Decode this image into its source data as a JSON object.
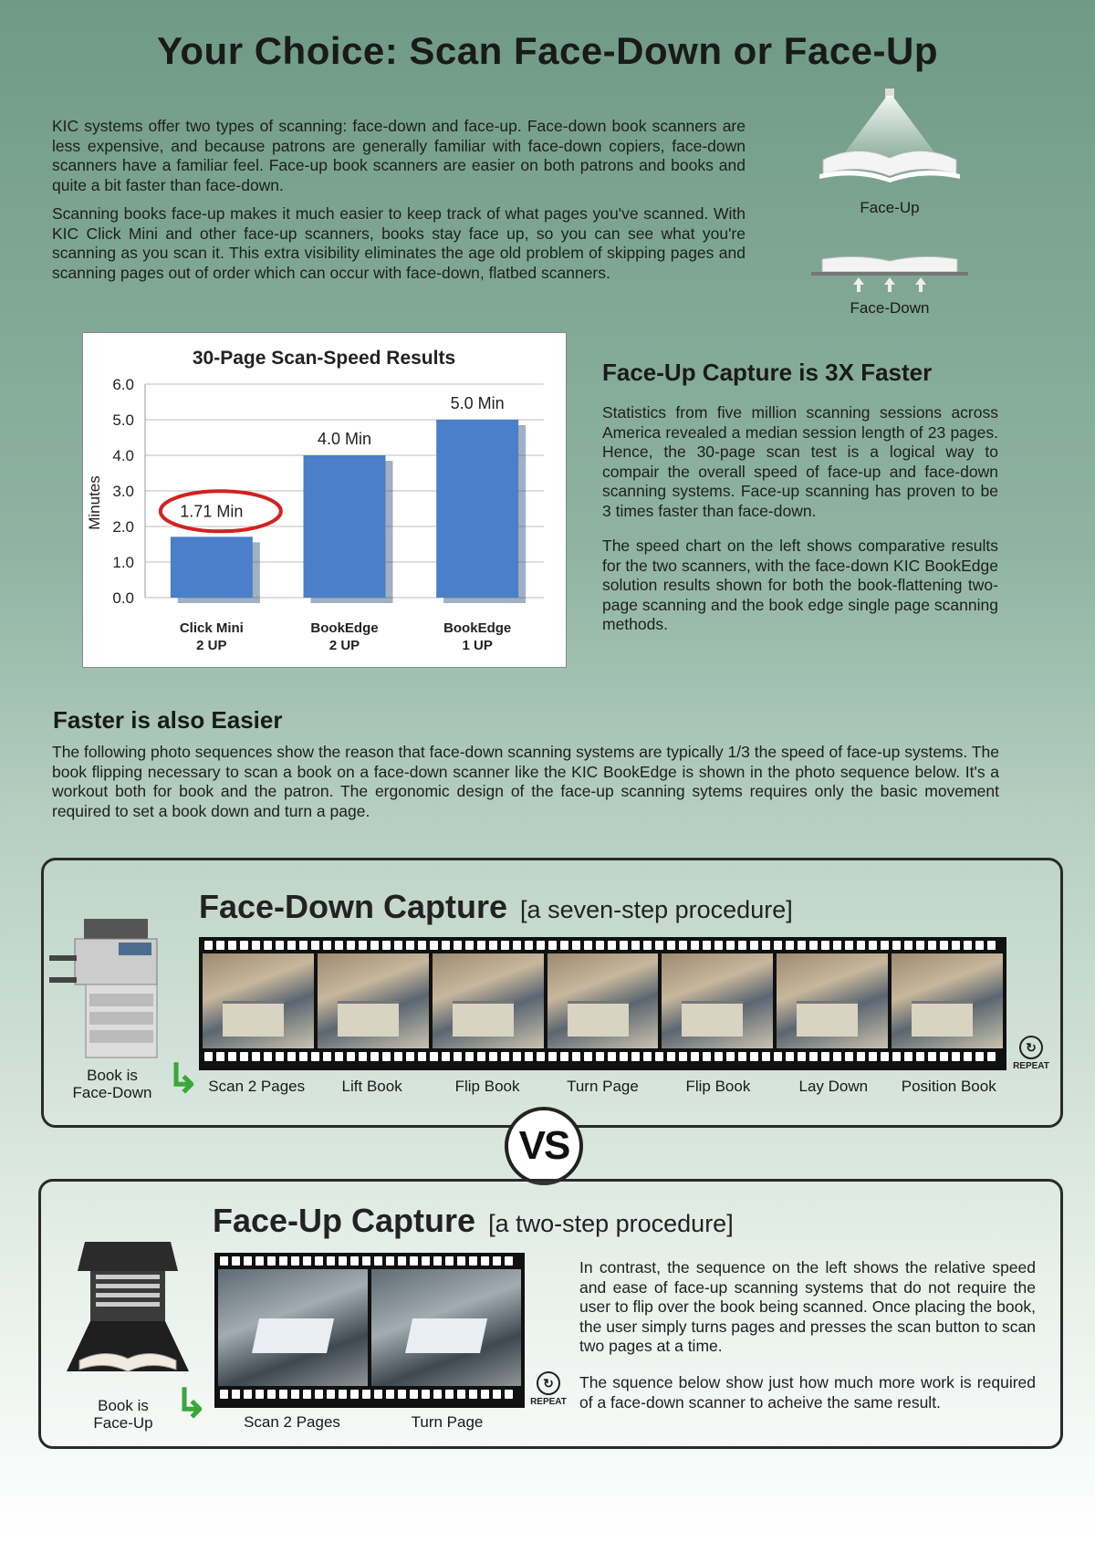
{
  "page": {
    "title": "Your Choice:  Scan Face-Down or Face-Up",
    "intro_p1": "KIC systems offer two types of scanning: face-down and face-up.  Face-down book scanners are less expensive, and because patrons are generally familiar with face-down copiers, face-down scanners have a familiar feel.  Face-up book scanners are easier on both patrons and books and quite a bit faster than face-down.",
    "intro_p2": "Scanning books face-up makes it much easier to keep track of what pages you've scanned. With KIC Click Mini and other face-up scanners, books stay face up, so you can see what you're scanning as you scan it.  This extra visibility eliminates the age old problem of skipping pages and scanning pages out of order which can occur with face-down, flatbed scanners.",
    "face_up_caption": "Face-Up",
    "face_down_caption": "Face-Down"
  },
  "speed_section": {
    "heading": "Face-Up Capture is 3X Faster",
    "p1": "Statistics from five million scanning sessions across America revealed a median session length of 23 pages.  Hence,  the 30-page scan test is a logical way to compair the overall speed of face-up and face-down scanning systems.  Face-up scanning has proven to be 3 times faster than face-down.",
    "p2": "The speed chart on the left shows comparative results for the two scanners, with the face-down KIC BookEdge solution results shown for both the book-flattening two-page scanning and the book edge single page scanning methods."
  },
  "easier_section": {
    "heading": "Faster is also Easier",
    "p1": "The following photo sequences show the reason that face-down scanning systems are typically 1/3 the speed of face-up systems.  The book flipping necessary to scan a book on a face-down scanner like the KIC BookEdge is shown in the photo sequence below.  It's a workout both for book and the patron. The ergonomic design of the face-up scanning sytems requires only the basic movement required to set a book down and turn a page."
  },
  "face_down_panel": {
    "title": "Face-Down Capture",
    "subtitle": "[a seven-step procedure]",
    "device_label_1": "Book is",
    "device_label_2": "Face-Down",
    "steps": [
      "Scan 2 Pages",
      "Lift Book",
      "Flip Book",
      "Turn Page",
      "Flip Book",
      "Lay Down",
      "Position Book"
    ],
    "repeat_label": "REPEAT"
  },
  "vs_label": "VS",
  "face_up_panel": {
    "title": "Face-Up Capture",
    "subtitle": "[a two-step procedure]",
    "device_label_1": "Book is",
    "device_label_2": "Face-Up",
    "steps": [
      "Scan 2 Pages",
      "Turn Page"
    ],
    "repeat_label": "REPEAT",
    "p1": "In contrast, the sequence on the left shows the relative speed and ease of face-up scanning systems that do not require the user to flip over the book being scanned.  Once placing the book, the user simply turns pages and presses the scan button to scan two pages at a time.",
    "p2": "The squence below show just how much more work is required of a face-down scanner to acheive the same result."
  },
  "chart_data": {
    "type": "bar",
    "title": "30-Page Scan-Speed Results",
    "ylabel": "Minutes",
    "xlabel": "",
    "ylim": [
      0,
      6
    ],
    "yticks": [
      "0.0",
      "1.0",
      "2.0",
      "3.0",
      "4.0",
      "5.0",
      "6.0"
    ],
    "grid": true,
    "categories": [
      [
        "Click Mini",
        "2 UP"
      ],
      [
        "BookEdge",
        "2 UP"
      ],
      [
        "BookEdge",
        "1 UP"
      ]
    ],
    "values": [
      1.71,
      4.0,
      5.0
    ],
    "data_labels": [
      "1.71 Min",
      "4.0 Min",
      "5.0 Min"
    ],
    "bar_color": "#4a7fc9",
    "highlight_color": "#d42020"
  }
}
